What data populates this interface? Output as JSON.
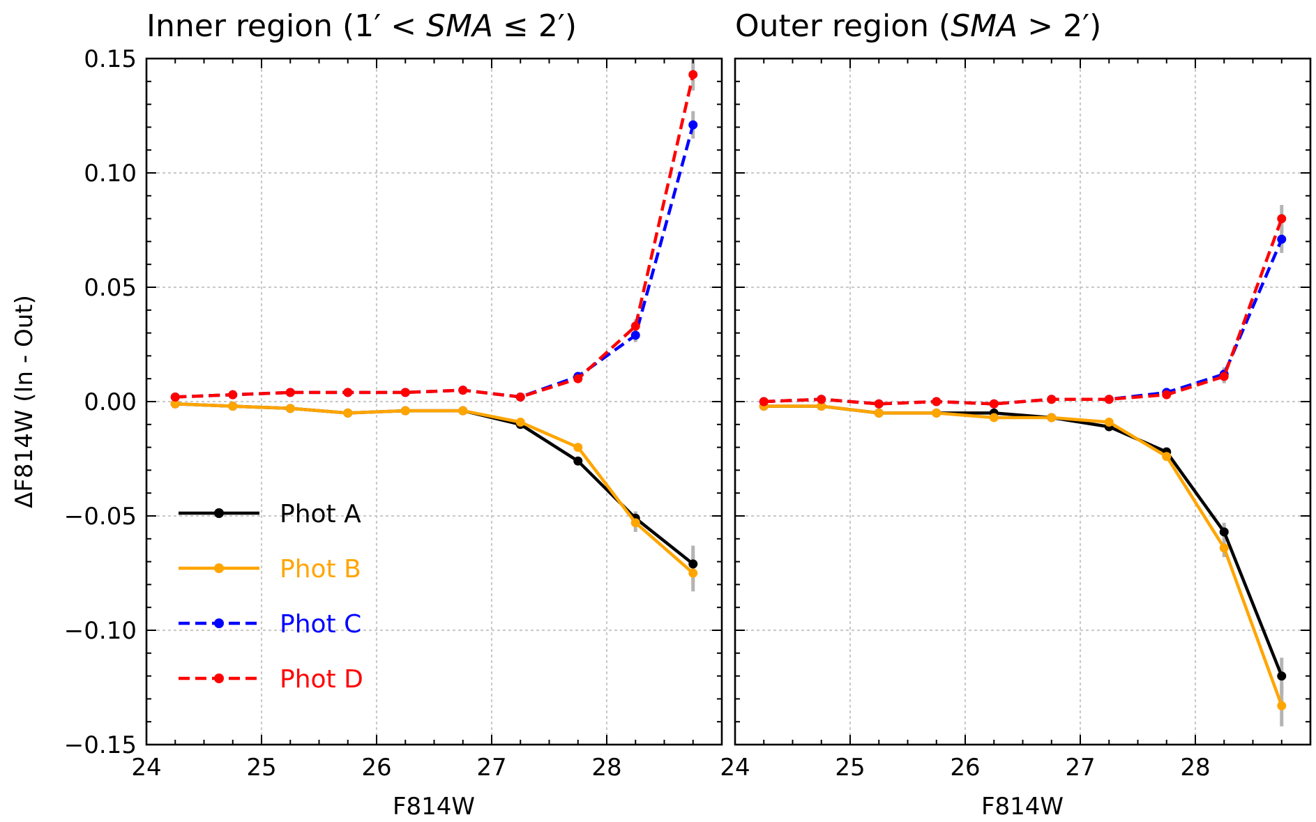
{
  "chart_data": [
    {
      "type": "line",
      "panel": "left",
      "title_plain": "Inner region (1′ < SMA ≤ 2′)",
      "title_parts": [
        "Inner region (1",
        "′",
        " < ",
        "SMA",
        " ≤ 2",
        "′",
        ")"
      ],
      "xlabel": "F814W",
      "ylabel": "ΔF814W (In - Out)",
      "xlim": [
        24,
        29
      ],
      "ylim": [
        -0.15,
        0.15
      ],
      "xticks": [
        "24",
        "25",
        "26",
        "27",
        "28"
      ],
      "xtick_values": [
        24,
        25,
        26,
        27,
        28
      ],
      "yticks": [
        "0.15",
        "0.10",
        "0.05",
        "0.00",
        "−0.05",
        "−0.10",
        "−0.15"
      ],
      "ytick_values": [
        0.15,
        0.1,
        0.05,
        0.0,
        -0.05,
        -0.1,
        -0.15
      ],
      "grid": true,
      "x": [
        24.25,
        24.75,
        25.25,
        25.75,
        26.25,
        26.75,
        27.25,
        27.75,
        28.25,
        28.75
      ],
      "series": [
        {
          "name": "Phot A",
          "color": "#000000",
          "linestyle": "solid",
          "values": [
            -0.001,
            -0.002,
            -0.003,
            -0.005,
            -0.004,
            -0.004,
            -0.01,
            -0.026,
            -0.051,
            -0.071
          ],
          "errors": [
            0,
            0,
            0,
            0,
            0,
            0,
            0,
            0,
            0.003,
            0.008
          ]
        },
        {
          "name": "Phot B",
          "color": "#ffa500",
          "linestyle": "solid",
          "values": [
            -0.001,
            -0.002,
            -0.003,
            -0.005,
            -0.004,
            -0.004,
            -0.009,
            -0.02,
            -0.053,
            -0.075
          ],
          "errors": [
            0,
            0,
            0,
            0,
            0,
            0,
            0,
            0,
            0.004,
            0.008
          ]
        },
        {
          "name": "Phot C",
          "color": "#0000ff",
          "linestyle": "dashed",
          "values": [
            0.002,
            0.003,
            0.004,
            0.004,
            0.004,
            0.005,
            0.002,
            0.011,
            0.029,
            0.121
          ],
          "errors": [
            0,
            0,
            0,
            0,
            0,
            0,
            0,
            0,
            0.003,
            0.006
          ]
        },
        {
          "name": "Phot D",
          "color": "#ff0000",
          "linestyle": "dashed",
          "values": [
            0.002,
            0.003,
            0.004,
            0.004,
            0.004,
            0.005,
            0.002,
            0.01,
            0.033,
            0.143
          ],
          "errors": [
            0,
            0,
            0,
            0,
            0,
            0,
            0,
            0,
            0.003,
            0.007
          ]
        }
      ],
      "legend": {
        "placement": "lower-left",
        "entries": [
          "Phot A",
          "Phot B",
          "Phot C",
          "Phot D"
        ]
      }
    },
    {
      "type": "line",
      "panel": "right",
      "title_plain": "Outer region (SMA > 2′)",
      "title_parts": [
        "Outer region (",
        "SMA",
        " > 2",
        "′",
        ")"
      ],
      "xlabel": "F814W",
      "ylabel": "",
      "xlim": [
        24,
        29
      ],
      "ylim": [
        -0.15,
        0.15
      ],
      "xticks": [
        "24",
        "25",
        "26",
        "27",
        "28"
      ],
      "xtick_values": [
        24,
        25,
        26,
        27,
        28
      ],
      "grid": true,
      "x": [
        24.25,
        24.75,
        25.25,
        25.75,
        26.25,
        26.75,
        27.25,
        27.75,
        28.25,
        28.75
      ],
      "series": [
        {
          "name": "Phot A",
          "color": "#000000",
          "linestyle": "solid",
          "values": [
            -0.002,
            -0.002,
            -0.005,
            -0.005,
            -0.005,
            -0.007,
            -0.011,
            -0.022,
            -0.057,
            -0.12
          ],
          "errors": [
            0,
            0,
            0,
            0,
            0,
            0,
            0,
            0,
            0.004,
            0.008
          ]
        },
        {
          "name": "Phot B",
          "color": "#ffa500",
          "linestyle": "solid",
          "values": [
            -0.002,
            -0.002,
            -0.005,
            -0.005,
            -0.007,
            -0.007,
            -0.009,
            -0.024,
            -0.064,
            -0.133
          ],
          "errors": [
            0,
            0,
            0,
            0,
            0,
            0,
            0,
            0,
            0.004,
            0.009
          ]
        },
        {
          "name": "Phot C",
          "color": "#0000ff",
          "linestyle": "dashed",
          "values": [
            0.0,
            0.001,
            -0.001,
            0.0,
            -0.001,
            0.001,
            0.001,
            0.004,
            0.012,
            0.071
          ],
          "errors": [
            0,
            0,
            0,
            0,
            0,
            0,
            0,
            0,
            0.003,
            0.006
          ]
        },
        {
          "name": "Phot D",
          "color": "#ff0000",
          "linestyle": "dashed",
          "values": [
            0.0,
            0.001,
            -0.001,
            0.0,
            -0.001,
            0.001,
            0.001,
            0.003,
            0.011,
            0.08
          ],
          "errors": [
            0,
            0,
            0,
            0,
            0,
            0,
            0,
            0,
            0.003,
            0.006
          ]
        }
      ]
    }
  ],
  "colors": {
    "grid": "#c8c8c8",
    "errorbar": "#b4b4b4",
    "axis": "#000000"
  }
}
